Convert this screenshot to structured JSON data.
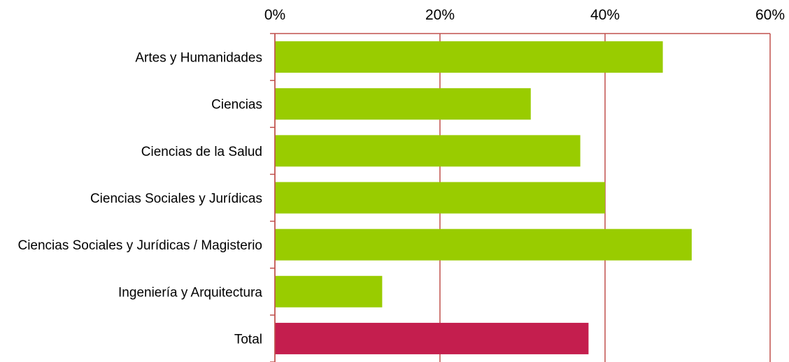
{
  "chart_data": {
    "type": "bar",
    "orientation": "horizontal",
    "categories": [
      "Artes y Humanidades",
      "Ciencias",
      "Ciencias de la Salud",
      "Ciencias Sociales y Jurídicas",
      "Ciencias Sociales y Jurídicas / Magisterio",
      "Ingeniería y Arquitectura",
      "Total"
    ],
    "values": [
      0.47,
      0.31,
      0.37,
      0.4,
      0.505,
      0.13,
      0.38
    ],
    "bar_colors": [
      "#99cc00",
      "#99cc00",
      "#99cc00",
      "#99cc00",
      "#99cc00",
      "#99cc00",
      "#c41e4e"
    ],
    "xlim": [
      0,
      0.6
    ],
    "x_ticks": [
      0,
      0.2,
      0.4,
      0.6
    ],
    "x_tick_labels": [
      "0%",
      "20%",
      "40%",
      "60%"
    ],
    "x_axis_position": "top",
    "grid": true,
    "grid_color": "#c0504d",
    "title": "",
    "xlabel": "",
    "ylabel": ""
  }
}
